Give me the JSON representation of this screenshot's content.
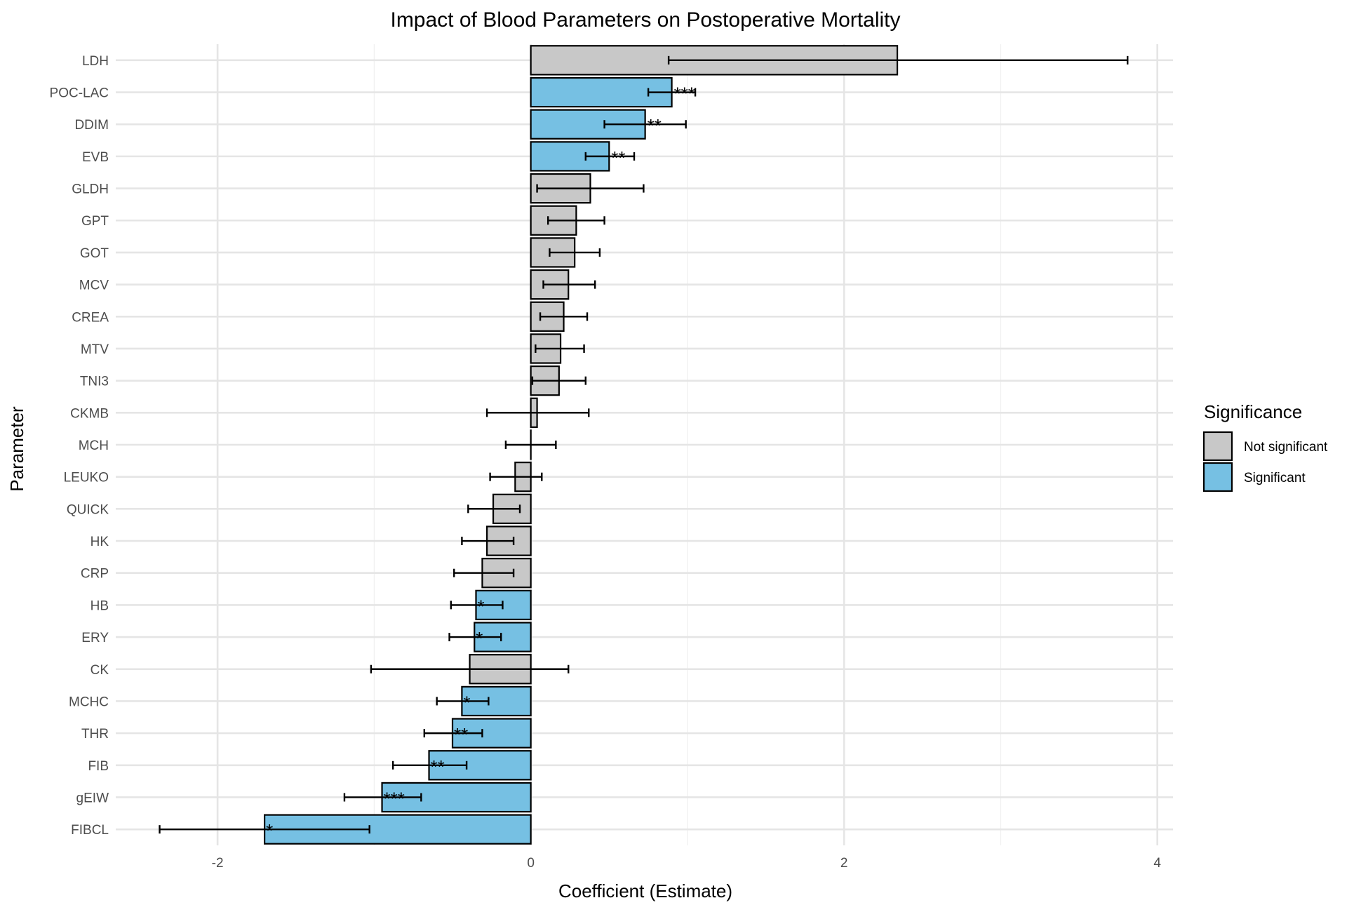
{
  "chart_data": {
    "type": "bar",
    "orientation": "horizontal",
    "title": "Impact of Blood Parameters on Postoperative Mortality",
    "xlabel": "Coefficient (Estimate)",
    "ylabel": "Parameter",
    "xlim": [
      -2.65,
      4.1
    ],
    "x_ticks": [
      -2,
      0,
      2,
      4
    ],
    "grid": true,
    "legend": {
      "title": "Significance",
      "placement": "right",
      "entries": [
        {
          "label": "Not significant",
          "color": "#c8c8c8"
        },
        {
          "label": "Significant",
          "color": "#76c0e3"
        }
      ]
    },
    "colors": {
      "Not significant": "#c8c8c8",
      "Significant": "#76c0e3"
    },
    "bars": [
      {
        "parameter": "LDH",
        "estimate": 2.34,
        "ci_low": 0.88,
        "ci_high": 3.81,
        "significance": "Not significant",
        "stars": ""
      },
      {
        "parameter": "POC-LAC",
        "estimate": 0.9,
        "ci_low": 0.75,
        "ci_high": 1.05,
        "significance": "Significant",
        "stars": "***"
      },
      {
        "parameter": "DDIM",
        "estimate": 0.73,
        "ci_low": 0.47,
        "ci_high": 0.99,
        "significance": "Significant",
        "stars": "**"
      },
      {
        "parameter": "EVB",
        "estimate": 0.5,
        "ci_low": 0.35,
        "ci_high": 0.66,
        "significance": "Significant",
        "stars": "**"
      },
      {
        "parameter": "GLDH",
        "estimate": 0.38,
        "ci_low": 0.04,
        "ci_high": 0.72,
        "significance": "Not significant",
        "stars": ""
      },
      {
        "parameter": "GPT",
        "estimate": 0.29,
        "ci_low": 0.11,
        "ci_high": 0.47,
        "significance": "Not significant",
        "stars": ""
      },
      {
        "parameter": "GOT",
        "estimate": 0.28,
        "ci_low": 0.12,
        "ci_high": 0.44,
        "significance": "Not significant",
        "stars": ""
      },
      {
        "parameter": "MCV",
        "estimate": 0.24,
        "ci_low": 0.08,
        "ci_high": 0.41,
        "significance": "Not significant",
        "stars": ""
      },
      {
        "parameter": "CREA",
        "estimate": 0.21,
        "ci_low": 0.06,
        "ci_high": 0.36,
        "significance": "Not significant",
        "stars": ""
      },
      {
        "parameter": "MTV",
        "estimate": 0.19,
        "ci_low": 0.03,
        "ci_high": 0.34,
        "significance": "Not significant",
        "stars": ""
      },
      {
        "parameter": "TNI3",
        "estimate": 0.18,
        "ci_low": 0.01,
        "ci_high": 0.35,
        "significance": "Not significant",
        "stars": ""
      },
      {
        "parameter": "CKMB",
        "estimate": 0.04,
        "ci_low": -0.28,
        "ci_high": 0.37,
        "significance": "Not significant",
        "stars": ""
      },
      {
        "parameter": "MCH",
        "estimate": 0.0,
        "ci_low": -0.16,
        "ci_high": 0.16,
        "significance": "Not significant",
        "stars": ""
      },
      {
        "parameter": "LEUKO",
        "estimate": -0.1,
        "ci_low": -0.26,
        "ci_high": 0.07,
        "significance": "Not significant",
        "stars": ""
      },
      {
        "parameter": "QUICK",
        "estimate": -0.24,
        "ci_low": -0.4,
        "ci_high": -0.07,
        "significance": "Not significant",
        "stars": ""
      },
      {
        "parameter": "HK",
        "estimate": -0.28,
        "ci_low": -0.44,
        "ci_high": -0.11,
        "significance": "Not significant",
        "stars": ""
      },
      {
        "parameter": "CRP",
        "estimate": -0.31,
        "ci_low": -0.49,
        "ci_high": -0.11,
        "significance": "Not significant",
        "stars": ""
      },
      {
        "parameter": "HB",
        "estimate": -0.35,
        "ci_low": -0.51,
        "ci_high": -0.18,
        "significance": "Significant",
        "stars": "*"
      },
      {
        "parameter": "ERY",
        "estimate": -0.36,
        "ci_low": -0.52,
        "ci_high": -0.19,
        "significance": "Significant",
        "stars": "*"
      },
      {
        "parameter": "CK",
        "estimate": -0.39,
        "ci_low": -1.02,
        "ci_high": 0.24,
        "significance": "Not significant",
        "stars": ""
      },
      {
        "parameter": "MCHC",
        "estimate": -0.44,
        "ci_low": -0.6,
        "ci_high": -0.27,
        "significance": "Significant",
        "stars": "*"
      },
      {
        "parameter": "THR",
        "estimate": -0.5,
        "ci_low": -0.68,
        "ci_high": -0.31,
        "significance": "Significant",
        "stars": "**"
      },
      {
        "parameter": "FIB",
        "estimate": -0.65,
        "ci_low": -0.88,
        "ci_high": -0.41,
        "significance": "Significant",
        "stars": "**"
      },
      {
        "parameter": "gEIW",
        "estimate": -0.95,
        "ci_low": -1.19,
        "ci_high": -0.7,
        "significance": "Significant",
        "stars": "***"
      },
      {
        "parameter": "FIBCL",
        "estimate": -1.7,
        "ci_low": -2.37,
        "ci_high": -1.03,
        "significance": "Significant",
        "stars": "*"
      }
    ]
  }
}
